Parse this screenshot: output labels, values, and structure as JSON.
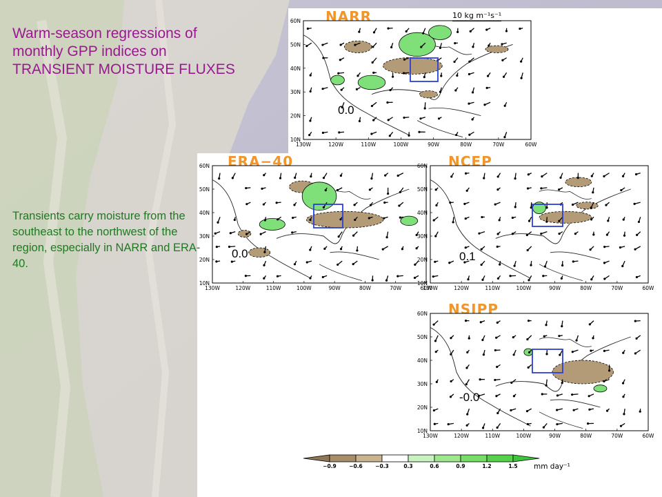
{
  "title": "Warm-season regressions of monthly GPP indices on TRANSIENT MOISTURE FLUXES",
  "description": "Transients carry moisture from the southeast to the northwest of the region, especially in NARR and ERA-40.",
  "panels": [
    {
      "id": "narr",
      "name": "NARR",
      "value": "0.0",
      "reference": "10 kg m⁻¹s⁻¹"
    },
    {
      "id": "era40",
      "name": "ERA−40",
      "value": "0.0"
    },
    {
      "id": "ncep",
      "name": "NCEP",
      "value": "0.1"
    },
    {
      "id": "nsipp",
      "name": "NSIPP",
      "value": "-0.0"
    }
  ],
  "lat_labels": [
    "60N",
    "50N",
    "40N",
    "30N",
    "20N",
    "10N"
  ],
  "lon_labels": [
    "130W",
    "120W",
    "110W",
    "100W",
    "90W",
    "80W",
    "70W",
    "60W"
  ],
  "colorbar": {
    "ticks": [
      "−0.9",
      "−0.6",
      "−0.3",
      "0.3",
      "0.6",
      "0.9",
      "1.2",
      "1.5"
    ],
    "units": "mm  day⁻¹",
    "colors": [
      "#8f7657",
      "#a88d6a",
      "#c9b48f",
      "#ffffff",
      "#c8f2c0",
      "#9fe78f",
      "#78dc68",
      "#55d14a",
      "#3fc53a"
    ]
  },
  "colors": {
    "title": "#99198f",
    "description": "#1d7a1f",
    "panel_title": "#f0962a",
    "box": "#2a3fd6",
    "brown": "#b39b78",
    "green": "#7fe07a"
  }
}
